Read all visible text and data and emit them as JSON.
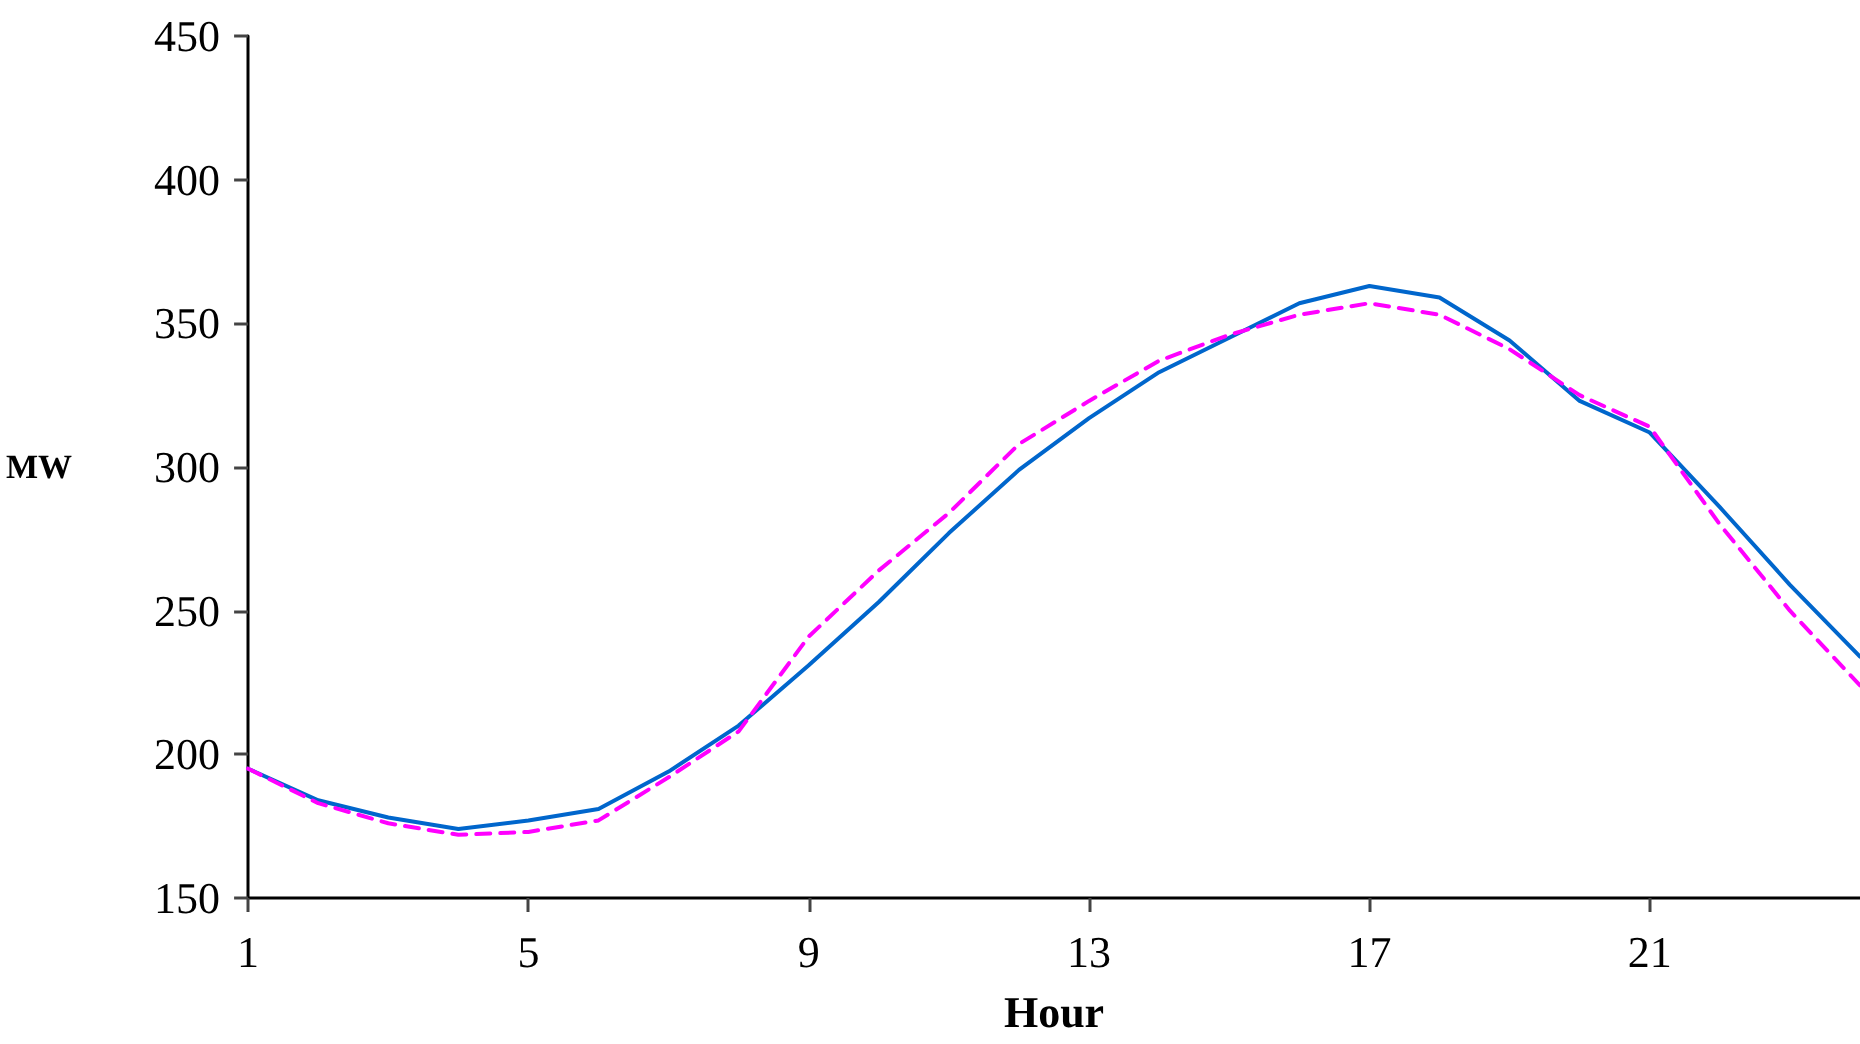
{
  "chart_data": {
    "type": "line",
    "xlabel": "Hour",
    "ylabel": "MW",
    "x": [
      1,
      2,
      3,
      4,
      5,
      6,
      7,
      8,
      9,
      10,
      11,
      12,
      13,
      14,
      15,
      16,
      17,
      18,
      19,
      20,
      21,
      22,
      23,
      24
    ],
    "series": [
      {
        "color": "#0066cc",
        "line_style": "solid",
        "values": [
          195,
          184,
          178,
          174,
          177,
          181,
          194,
          210,
          231,
          253,
          277,
          299,
          317,
          333,
          345,
          357,
          363,
          359,
          344,
          323,
          312,
          286,
          259,
          234
        ]
      },
      {
        "color": "#ff00ff",
        "line_style": "dashed",
        "values": [
          195,
          183,
          176,
          172,
          173,
          177,
          192,
          208,
          241,
          264,
          284,
          308,
          323,
          337,
          346,
          353,
          357,
          353,
          341,
          325,
          314,
          280,
          250,
          224
        ]
      }
    ],
    "xlim": [
      1,
      24
    ],
    "xticks": [
      1,
      5,
      9,
      13,
      17,
      21
    ],
    "ylim": [
      150,
      450
    ],
    "yticks": [
      150,
      200,
      250,
      300,
      350,
      400,
      450
    ],
    "marker": "none"
  }
}
